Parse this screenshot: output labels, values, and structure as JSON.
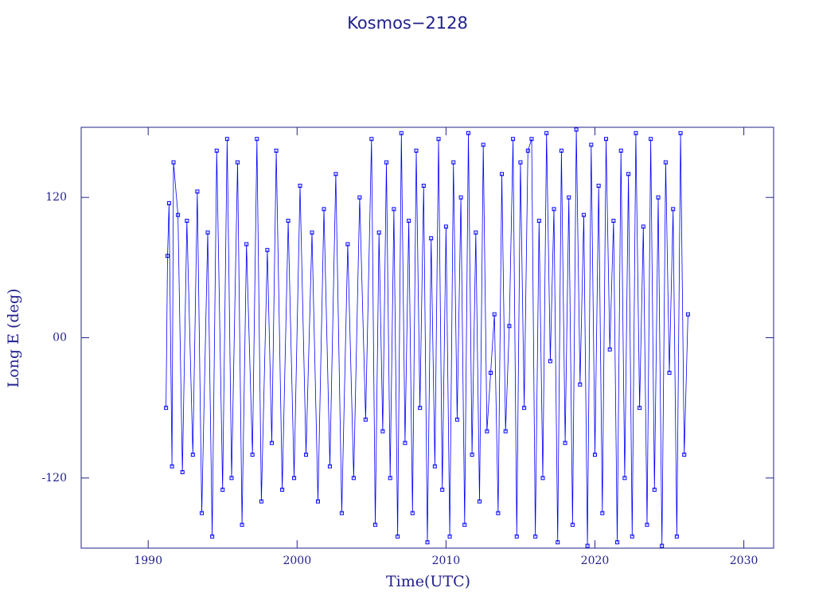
{
  "chart_data": {
    "type": "line",
    "title": "Kosmos−2128",
    "xlabel": "Time(UTC)",
    "ylabel": "Long E (deg)",
    "color": "#0000ff",
    "xlim": [
      1985.5,
      2032
    ],
    "ylim": [
      -180,
      180
    ],
    "xticks": [
      1990,
      2000,
      2010,
      2020,
      2030
    ],
    "yticks": [
      -120,
      {
        "value": 0,
        "label": "00"
      },
      120
    ],
    "x": [
      1991.2,
      1991.3,
      1991.4,
      1991.6,
      1991.7,
      1992.0,
      1992.3,
      1992.6,
      1993.0,
      1993.3,
      1993.6,
      1994.0,
      1994.3,
      1994.6,
      1995.0,
      1995.3,
      1995.6,
      1996.0,
      1996.3,
      1996.6,
      1997.0,
      1997.3,
      1997.6,
      1998.0,
      1998.3,
      1998.6,
      1999.0,
      1999.4,
      1999.8,
      2000.2,
      2000.6,
      2001.0,
      2001.4,
      2001.8,
      2002.2,
      2002.6,
      2003.0,
      2003.4,
      2003.8,
      2004.2,
      2004.6,
      2005.0,
      2005.25,
      2005.5,
      2005.75,
      2006.0,
      2006.25,
      2006.5,
      2006.75,
      2007.0,
      2007.25,
      2007.5,
      2007.75,
      2008.0,
      2008.25,
      2008.5,
      2008.75,
      2009.0,
      2009.25,
      2009.5,
      2009.75,
      2010.0,
      2010.25,
      2010.5,
      2010.75,
      2011.0,
      2011.25,
      2011.5,
      2011.75,
      2012.0,
      2012.25,
      2012.5,
      2012.75,
      2013.0,
      2013.25,
      2013.5,
      2013.75,
      2014.0,
      2014.25,
      2014.5,
      2014.75,
      2015.0,
      2015.25,
      2015.5,
      2015.75,
      2016.0,
      2016.25,
      2016.5,
      2016.75,
      2017.0,
      2017.25,
      2017.5,
      2017.75,
      2018.0,
      2018.25,
      2018.5,
      2018.75,
      2019.0,
      2019.25,
      2019.5,
      2019.75,
      2020.0,
      2020.25,
      2020.5,
      2020.75,
      2021.0,
      2021.25,
      2021.5,
      2021.75,
      2022.0,
      2022.25,
      2022.5,
      2022.75,
      2023.0,
      2023.25,
      2023.5,
      2023.75,
      2024.0,
      2024.25,
      2024.5,
      2024.75,
      2025.0,
      2025.25,
      2025.5,
      2025.75,
      2026.0,
      2026.25
    ],
    "values": [
      -60,
      70,
      115,
      -110,
      150,
      105,
      -115,
      100,
      -100,
      125,
      -150,
      90,
      -170,
      160,
      -130,
      170,
      -120,
      150,
      -160,
      80,
      -100,
      170,
      -140,
      75,
      -90,
      160,
      -130,
      100,
      -120,
      130,
      -100,
      90,
      -140,
      110,
      -110,
      140,
      -150,
      80,
      -120,
      120,
      -70,
      170,
      -160,
      90,
      -80,
      150,
      -120,
      110,
      -170,
      175,
      -90,
      100,
      -150,
      160,
      -60,
      130,
      -175,
      85,
      -110,
      170,
      -130,
      95,
      -170,
      150,
      -70,
      120,
      -160,
      175,
      -100,
      90,
      -140,
      165,
      -80,
      -30,
      20,
      -150,
      140,
      -80,
      10,
      170,
      -170,
      150,
      -60,
      160,
      170,
      -170,
      100,
      -120,
      175,
      -20,
      110,
      -175,
      160,
      -90,
      120,
      -160,
      178,
      -40,
      105,
      -178,
      165,
      -100,
      130,
      -150,
      170,
      -10,
      100,
      -175,
      160,
      -120,
      140,
      -170,
      175,
      -60,
      95,
      -160,
      170,
      -130,
      120,
      -178,
      150,
      -30,
      110,
      -170,
      175,
      -100,
      20
    ]
  }
}
